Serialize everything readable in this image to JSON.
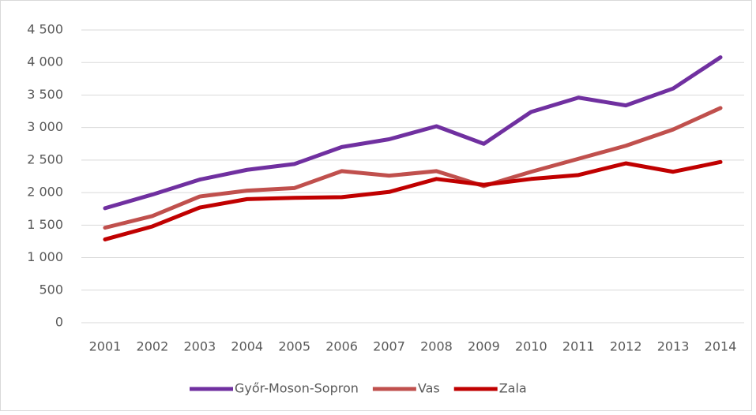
{
  "chart_data": {
    "type": "line",
    "categories": [
      "2001",
      "2002",
      "2003",
      "2004",
      "2005",
      "2006",
      "2007",
      "2008",
      "2009",
      "2010",
      "2011",
      "2012",
      "2013",
      "2014"
    ],
    "series": [
      {
        "name": "Győr-Moson-Sopron",
        "color": "#7030a0",
        "values": [
          1760,
          1970,
          2200,
          2350,
          2440,
          2700,
          2820,
          3020,
          2750,
          3240,
          3460,
          3340,
          3600,
          4080
        ]
      },
      {
        "name": "Vas",
        "color": "#c0504d",
        "values": [
          1460,
          1640,
          1940,
          2030,
          2070,
          2330,
          2260,
          2330,
          2100,
          2320,
          2520,
          2720,
          2970,
          3300
        ]
      },
      {
        "name": "Zala",
        "color": "#c00000",
        "values": [
          1280,
          1480,
          1770,
          1900,
          1920,
          1930,
          2010,
          2210,
          2120,
          2210,
          2270,
          2450,
          2320,
          2470
        ]
      }
    ],
    "ylim": [
      0,
      4500
    ],
    "yticks": [
      0,
      500,
      {
        "value": 1000,
        "label": "1 000"
      },
      {
        "value": 1500,
        "label": "1 500"
      },
      {
        "value": 2000,
        "label": "2 000"
      },
      {
        "value": 2500,
        "label": "2 500"
      },
      {
        "value": 3000,
        "label": "3 000"
      },
      {
        "value": 3500,
        "label": "3 500"
      },
      {
        "value": 4000,
        "label": "4 000"
      },
      {
        "value": 4500,
        "label": "4 500"
      }
    ],
    "grid": true,
    "legend": "bottom"
  }
}
